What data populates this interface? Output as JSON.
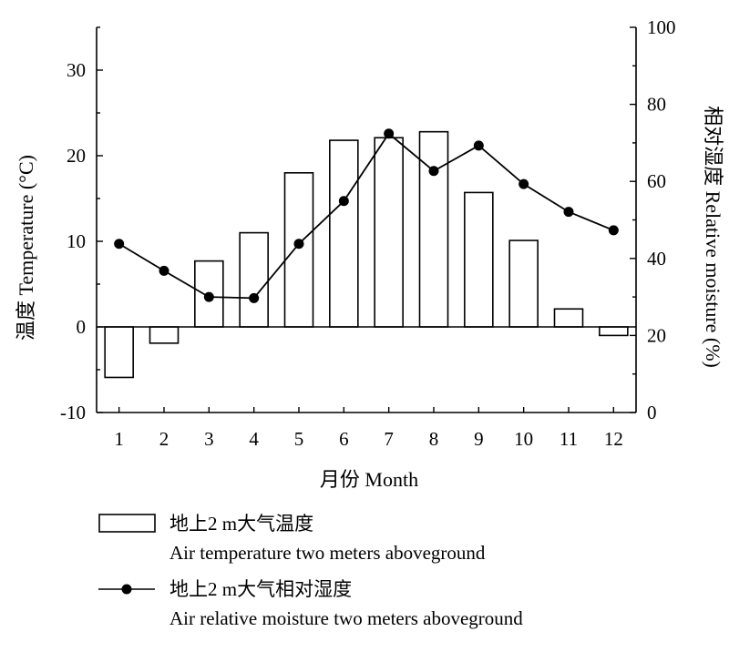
{
  "chart_data": {
    "type": "bar+line",
    "categories": [
      "1",
      "2",
      "3",
      "4",
      "5",
      "6",
      "7",
      "8",
      "9",
      "10",
      "11",
      "12"
    ],
    "xlabel": "月份 Month",
    "y_left": {
      "label": "温度 Temperature (°C)",
      "range": [
        -10,
        35
      ],
      "ticks": [
        "-10",
        "0",
        "10",
        "20",
        "30"
      ]
    },
    "y_right": {
      "label": "相对湿度 Relative moisture (%)",
      "range": [
        0,
        100
      ],
      "ticks": [
        "0",
        "20",
        "40",
        "60",
        "80",
        "100"
      ]
    },
    "series": [
      {
        "type": "bar",
        "axis": "left",
        "values": [
          -5.9,
          -1.9,
          7.7,
          11.0,
          18.0,
          21.8,
          22.1,
          22.8,
          15.7,
          10.1,
          2.1,
          -1.0
        ]
      },
      {
        "type": "line",
        "axis": "right",
        "values": [
          43.8,
          36.8,
          30.0,
          29.7,
          43.8,
          54.9,
          72.4,
          62.7,
          69.3,
          59.3,
          52.1,
          47.3
        ]
      }
    ],
    "legend": {
      "placement": "bottom",
      "entries": [
        {
          "label": "地上2 m大气温度",
          "sublabel": "Air temperature two meters aboveground"
        },
        {
          "label": "地上2 m大气相对湿度",
          "sublabel": "Air relative moisture two meters aboveground"
        }
      ]
    },
    "colors": {
      "bar_fill": "#ffffff",
      "stroke": "#000000",
      "marker": "#000000"
    }
  }
}
